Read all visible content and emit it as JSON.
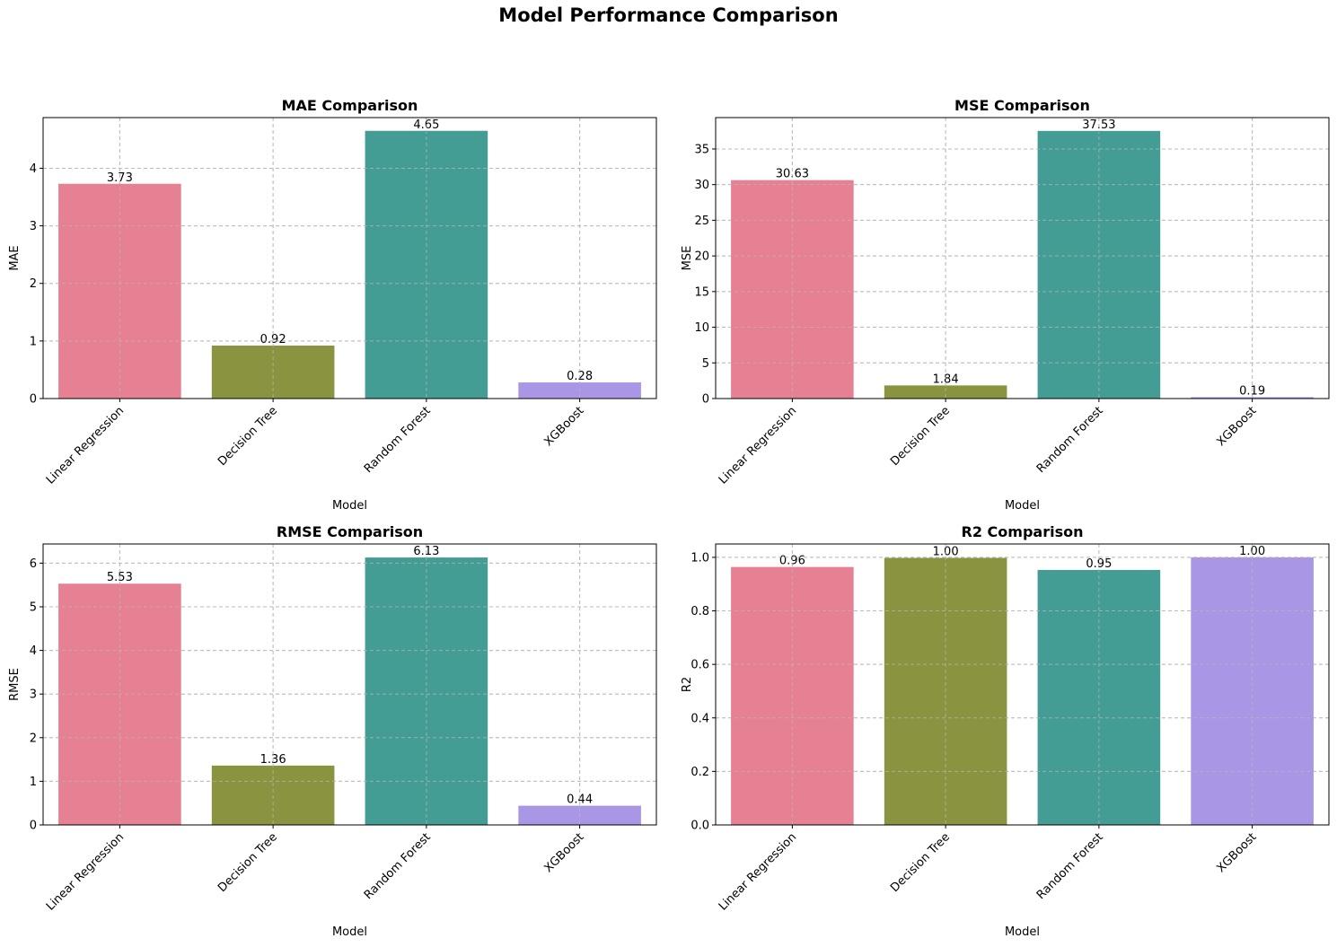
{
  "figure": {
    "suptitle": "Model Performance Comparison"
  },
  "palette": [
    "#e68193",
    "#8a9440",
    "#449d95",
    "#a996e5"
  ],
  "chart_data": [
    {
      "type": "bar",
      "title": "MAE Comparison",
      "xlabel": "Model",
      "ylabel": "MAE",
      "categories": [
        "Linear Regression",
        "Decision Tree",
        "Random Forest",
        "XGBoost"
      ],
      "values": [
        3.73,
        0.92,
        4.65,
        0.28
      ],
      "value_labels": [
        "3.73",
        "0.92",
        "4.65",
        "0.28"
      ],
      "ylim": [
        0,
        4.88
      ],
      "yticks": [
        0,
        1,
        2,
        3,
        4
      ],
      "ytick_labels": [
        "0",
        "1",
        "2",
        "3",
        "4"
      ],
      "grid": true
    },
    {
      "type": "bar",
      "title": "MSE Comparison",
      "xlabel": "Model",
      "ylabel": "MSE",
      "categories": [
        "Linear Regression",
        "Decision Tree",
        "Random Forest",
        "XGBoost"
      ],
      "values": [
        30.63,
        1.84,
        37.53,
        0.19
      ],
      "value_labels": [
        "30.63",
        "1.84",
        "37.53",
        "0.19"
      ],
      "ylim": [
        0,
        39.4
      ],
      "yticks": [
        0,
        5,
        10,
        15,
        20,
        25,
        30,
        35
      ],
      "ytick_labels": [
        "0",
        "5",
        "10",
        "15",
        "20",
        "25",
        "30",
        "35"
      ],
      "grid": true
    },
    {
      "type": "bar",
      "title": "RMSE Comparison",
      "xlabel": "Model",
      "ylabel": "RMSE",
      "categories": [
        "Linear Regression",
        "Decision Tree",
        "Random Forest",
        "XGBoost"
      ],
      "values": [
        5.53,
        1.36,
        6.13,
        0.44
      ],
      "value_labels": [
        "5.53",
        "1.36",
        "6.13",
        "0.44"
      ],
      "ylim": [
        0,
        6.44
      ],
      "yticks": [
        0,
        1,
        2,
        3,
        4,
        5,
        6
      ],
      "ytick_labels": [
        "0",
        "1",
        "2",
        "3",
        "4",
        "5",
        "6"
      ],
      "grid": true
    },
    {
      "type": "bar",
      "title": "R2 Comparison",
      "xlabel": "Model",
      "ylabel": "R2",
      "categories": [
        "Linear Regression",
        "Decision Tree",
        "Random Forest",
        "XGBoost"
      ],
      "values": [
        0.964,
        0.998,
        0.953,
        1.0
      ],
      "value_labels": [
        "0.96",
        "1.00",
        "0.95",
        "1.00"
      ],
      "ylim": [
        0,
        1.05
      ],
      "yticks": [
        0,
        0.2,
        0.4,
        0.6,
        0.8,
        1.0
      ],
      "ytick_labels": [
        "0.0",
        "0.2",
        "0.4",
        "0.6",
        "0.8",
        "1.0"
      ],
      "grid": true
    }
  ]
}
